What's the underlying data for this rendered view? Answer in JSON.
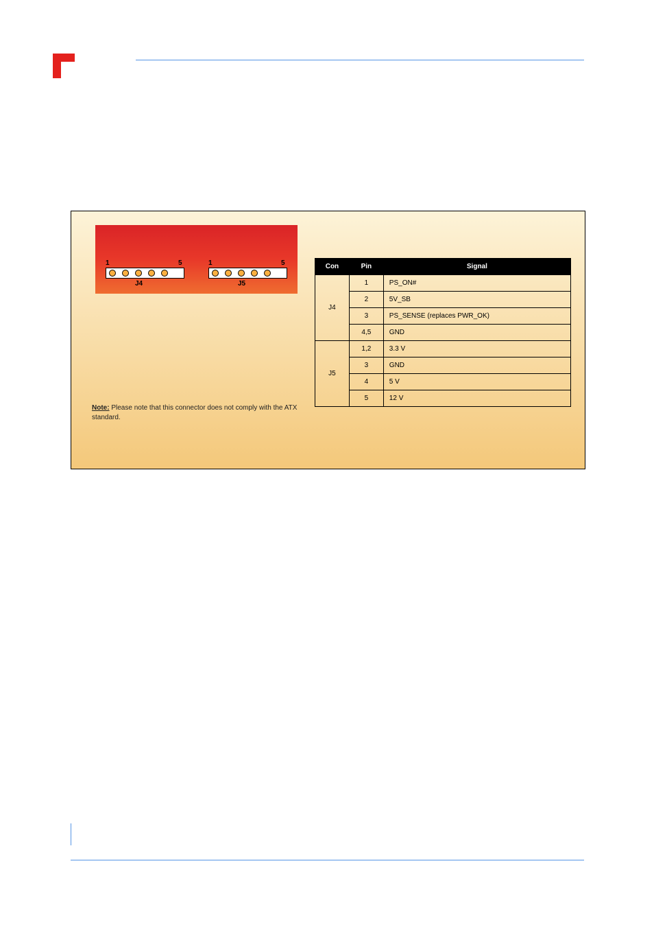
{
  "connector": {
    "j4": {
      "label": "J4",
      "pin_first": "1",
      "pin_last": "5"
    },
    "j5": {
      "label": "J5",
      "pin_first": "1",
      "pin_last": "5"
    },
    "block_gradient": [
      "#da2427",
      "#e83829",
      "#ef6d30"
    ],
    "pin_color": "#fbb040"
  },
  "note": {
    "heading": "Note:",
    "text": " Please note that this connector does not comply with the ATX standard."
  },
  "table": {
    "headers": [
      "Con",
      "Pin",
      "Signal"
    ],
    "groups": [
      {
        "con": "J4",
        "rows": [
          {
            "pin": "1",
            "signal": "PS_ON#"
          },
          {
            "pin": "2",
            "signal": "5V_SB"
          },
          {
            "pin": "3",
            "signal": "PS_SENSE (replaces PWR_OK)"
          },
          {
            "pin": "4,5",
            "signal": "GND"
          }
        ]
      },
      {
        "con": "J5",
        "rows": [
          {
            "pin": "1,2",
            "signal": "3.3 V"
          },
          {
            "pin": "3",
            "signal": "GND"
          },
          {
            "pin": "4",
            "signal": "5 V"
          },
          {
            "pin": "5",
            "signal": "12 V"
          }
        ]
      }
    ],
    "col_widths": [
      "50px",
      "50px",
      "274px"
    ],
    "header_bg": "#000000",
    "header_fg": "#ffffff"
  },
  "figure_bg": [
    "#fdf3d8",
    "#f4c87a"
  ],
  "rule_color": "#5594e5",
  "logo_color": "#e4211d"
}
